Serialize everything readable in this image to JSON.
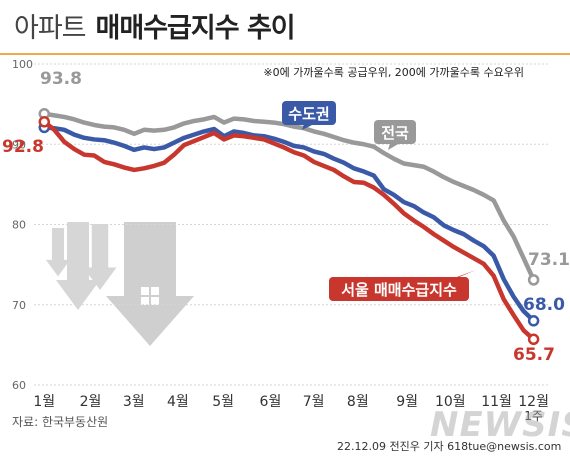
{
  "header": {
    "title_light": "아파트",
    "title_bold": "매매수급지수 추이"
  },
  "note": "※0에 가까울수록 공급우위, 200에 가까울수록 수요우위",
  "source": "자료: 한국부동산원",
  "credit": "22.12.09 전진우 기자 618tue@newsis.com",
  "watermark": "NEWSIS",
  "chart_data": {
    "type": "line",
    "ylim": [
      60,
      100
    ],
    "y_ticks": [
      60,
      70,
      80,
      90,
      100
    ],
    "x_ticks": [
      {
        "label": "1월",
        "x": 1
      },
      {
        "label": "2월",
        "x": 5.5
      },
      {
        "label": "3월",
        "x": 9.7
      },
      {
        "label": "4월",
        "x": 14
      },
      {
        "label": "5월",
        "x": 18.4
      },
      {
        "label": "6월",
        "x": 23
      },
      {
        "label": "7월",
        "x": 27.2
      },
      {
        "label": "8월",
        "x": 31.5
      },
      {
        "label": "9월",
        "x": 36.3
      },
      {
        "label": "10월",
        "x": 40.5
      },
      {
        "label": "11월",
        "x": 45
      },
      {
        "label": "12월",
        "x": 48.6
      }
    ],
    "x_last_sublabel": "1주",
    "xlim": [
      0,
      50
    ],
    "series": [
      {
        "name": "전국",
        "color": "#999999",
        "start_label": "93.8",
        "end_label": "73.1",
        "values": [
          93.8,
          93.6,
          93.4,
          93.1,
          92.7,
          92.4,
          92.2,
          92.1,
          91.8,
          91.3,
          91.8,
          91.7,
          91.8,
          92.1,
          92.6,
          92.9,
          93.1,
          93.4,
          92.7,
          93.2,
          93.1,
          92.9,
          92.8,
          92.7,
          92.5,
          92.2,
          92.0,
          91.6,
          91.3,
          90.9,
          90.5,
          90.2,
          90.0,
          89.7,
          88.9,
          88.2,
          87.6,
          87.4,
          87.2,
          86.6,
          85.9,
          85.3,
          84.8,
          84.3,
          83.7,
          83.0,
          80.5,
          78.5,
          75.8,
          73.1
        ]
      },
      {
        "name": "수도권",
        "color": "#3a5aa8",
        "start_label": "",
        "end_label": "68.0",
        "values": [
          92.1,
          92.0,
          91.8,
          91.2,
          90.8,
          90.6,
          90.5,
          90.2,
          89.8,
          89.3,
          89.6,
          89.4,
          89.6,
          90.2,
          90.8,
          91.2,
          91.6,
          91.9,
          91.0,
          91.6,
          91.4,
          91.1,
          91.0,
          90.7,
          90.3,
          89.8,
          89.6,
          89.1,
          88.8,
          88.2,
          87.7,
          87.0,
          86.6,
          86.1,
          84.4,
          83.7,
          82.8,
          82.3,
          81.5,
          80.9,
          79.9,
          79.3,
          78.8,
          78.0,
          77.3,
          76.1,
          73.2,
          71.0,
          69.2,
          68.0
        ]
      },
      {
        "name": "서울 매매수급지수",
        "color": "#c8372d",
        "start_label": "92.8",
        "end_label": "65.7",
        "values": [
          92.8,
          91.8,
          90.3,
          89.4,
          88.7,
          88.6,
          87.8,
          87.5,
          87.1,
          86.8,
          87.0,
          87.3,
          87.7,
          88.7,
          89.9,
          90.4,
          90.9,
          91.4,
          90.6,
          91.1,
          91.0,
          90.8,
          90.6,
          90.1,
          89.6,
          89.0,
          88.6,
          87.8,
          87.3,
          86.8,
          86.0,
          85.3,
          85.2,
          84.6,
          83.7,
          82.6,
          81.4,
          80.5,
          79.7,
          78.8,
          78.0,
          77.2,
          76.5,
          75.8,
          75.1,
          73.6,
          70.7,
          68.7,
          66.8,
          65.7
        ]
      }
    ]
  }
}
